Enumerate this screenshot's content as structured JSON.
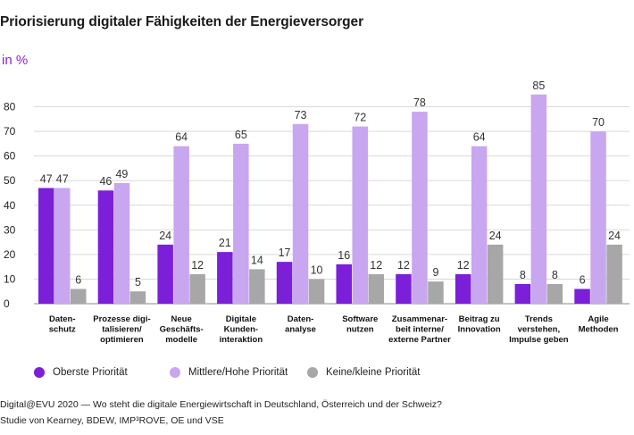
{
  "title": "Priorisierung digitaler Fähigkeiten der Energieversorger",
  "unit_label": "in %",
  "legend": [
    {
      "label": "Oberste Priorität",
      "color": "#7b1fd9"
    },
    {
      "label": "Mittlere/Hohe Priorität",
      "color": "#c9a6f0"
    },
    {
      "label": "Keine/kleine Priorität",
      "color": "#a7a7a7"
    }
  ],
  "source": {
    "line1": "Digital@EVU 2020 — Wo steht die digitale Energiewirtschaft in Deutschland, Österreich und der Schweiz?",
    "line2": "Studie von Kearney, BDEW, IMP³ROVE, OE und VSE"
  },
  "chart_data": {
    "type": "bar",
    "categories": [
      [
        "Daten-",
        "schutz"
      ],
      [
        "Prozesse digi-",
        "talisieren/",
        "optimieren"
      ],
      [
        "Neue",
        "Geschäfts-",
        "modelle"
      ],
      [
        "Digitale",
        "Kunden-",
        "interaktion"
      ],
      [
        "Daten-",
        "analyse"
      ],
      [
        "Software",
        "nutzen"
      ],
      [
        "Zusammenar-",
        "beit interne/",
        "externe Partner"
      ],
      [
        "Beitrag zu",
        "Innovation"
      ],
      [
        "Trends",
        "verstehen,",
        "Impulse geben"
      ],
      [
        "Agile",
        "Methoden"
      ]
    ],
    "series": [
      {
        "name": "Oberste Priorität",
        "color": "#7b1fd9",
        "values": [
          47,
          46,
          24,
          21,
          17,
          16,
          12,
          12,
          8,
          6
        ]
      },
      {
        "name": "Mittlere/Hohe Priorität",
        "color": "#c9a6f0",
        "values": [
          47,
          49,
          64,
          65,
          73,
          72,
          78,
          64,
          85,
          70
        ]
      },
      {
        "name": "Keine/kleine Priorität",
        "color": "#a7a7a7",
        "values": [
          6,
          5,
          12,
          14,
          10,
          12,
          9,
          24,
          8,
          24
        ]
      }
    ],
    "ylim": [
      0,
      90
    ],
    "yticks": [
      0,
      10,
      20,
      30,
      40,
      50,
      60,
      70,
      80
    ],
    "grid": true
  }
}
